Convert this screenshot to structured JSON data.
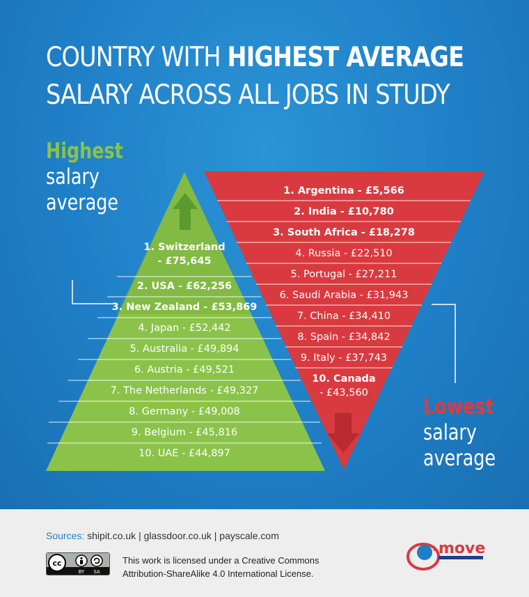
{
  "title": {
    "line1_normal": "COUNTRY WITH ",
    "line1_bold": "HIGHEST AVERAGE",
    "line2": "SALARY ACROSS ALL JOBS IN STUDY"
  },
  "highest_label": {
    "accent": "Highest",
    "line2": "salary",
    "line3": "average"
  },
  "lowest_label": {
    "accent": "Lowest",
    "line2": "salary",
    "line3": "average"
  },
  "highest_list": [
    {
      "line1": "1. Switzerland",
      "line2": "- £75,645"
    },
    {
      "text": "2. USA - £62,256"
    },
    {
      "text": "3. New Zealand - £53,869"
    },
    {
      "text": "4. Japan - £52,442"
    },
    {
      "text": "5. Australia - £49,894"
    },
    {
      "text": "6. Austria - £49,521"
    },
    {
      "text": "7. The Netherlands - £49,327"
    },
    {
      "text": "8. Germany - £49,008"
    },
    {
      "text": "9. Belgium - £45,816"
    },
    {
      "text": "10. UAE - £44,897"
    }
  ],
  "lowest_list": [
    {
      "text": "1. Argentina - £5,566"
    },
    {
      "text": "2. India - £10,780"
    },
    {
      "text": "3. South Africa - £18,278"
    },
    {
      "text": "4. Russia - £22,510"
    },
    {
      "text": "5. Portugal - £27,211"
    },
    {
      "text": "6. Saudi Arabia - £31,943"
    },
    {
      "text": "7. China - £34,410"
    },
    {
      "text": "8. Spain - £34,842"
    },
    {
      "text": "9. Italy - £37,743"
    },
    {
      "line1": "10. Canada",
      "line2": "- £43,560"
    }
  ],
  "footer": {
    "sources_label": "Sources:",
    "sources_text": "shipit.co.uk |  glassdoor.co.uk |  payscale.com",
    "license_line1": "This work is licensed under a Creative Commons",
    "license_line2": "Attribution-ShareAlike 4.0 International License.",
    "cc_badge_left": "cc",
    "cc_badge_by": "BY",
    "cc_badge_sa": "SA",
    "logo_text": "move",
    "logo_prefix": "i"
  },
  "colors": {
    "background_blue": "#1f7fc6",
    "green_triangle": "#8bc34a",
    "green_dark": "#6aa736",
    "red_triangle": "#d93a3f",
    "red_dark": "#b82a30"
  }
}
